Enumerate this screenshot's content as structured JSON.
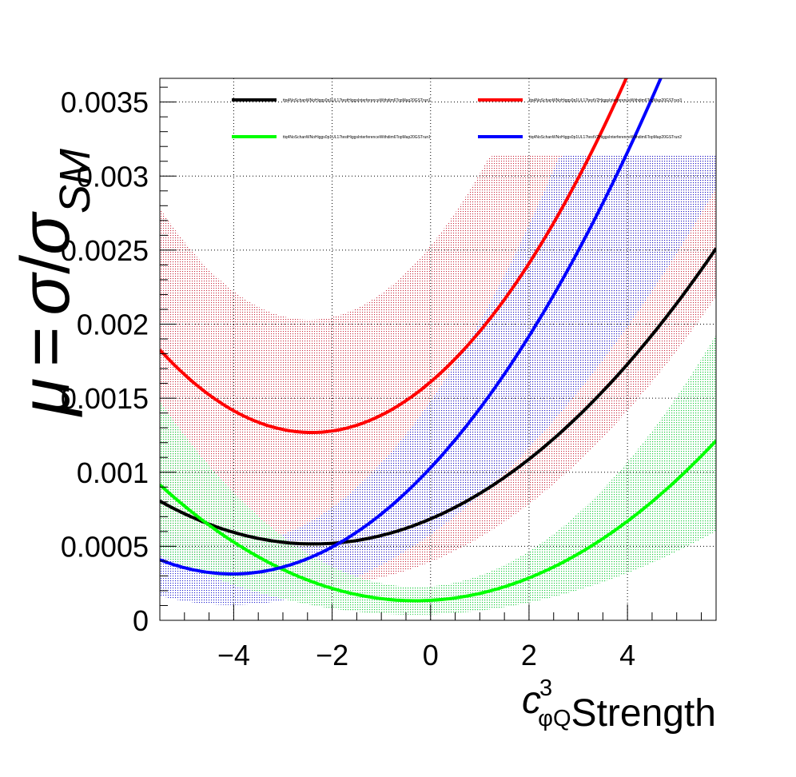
{
  "chart_data": {
    "type": "line",
    "title": "",
    "xlabel": {
      "symbol": "c",
      "superscript": "3",
      "subscript": "φQ",
      "text": "Strength"
    },
    "ylabel": {
      "mu": "μ",
      "eq": "=",
      "sigma": "σ",
      "slash": "/",
      "sub": "SM"
    },
    "xlim": [
      -5.5,
      5.8
    ],
    "ylim": [
      0,
      0.00366
    ],
    "x_ticks": [
      -4,
      -2,
      0,
      2,
      4
    ],
    "x_tick_labels": [
      "−4",
      "−2",
      "0",
      "2",
      "4"
    ],
    "y_ticks": [
      0,
      0.0005,
      0.001,
      0.0015,
      0.002,
      0.0025,
      0.003,
      0.0035
    ],
    "y_tick_labels": [
      "0",
      "0.0005",
      "0.001",
      "0.0015",
      "0.002",
      "0.0025",
      "0.003",
      "0.0035"
    ],
    "grid": true,
    "legend_position": "top",
    "series": [
      {
        "name": "ttq4NoSchanWNoHiggs0p1UL17testHiggsInterferenceWithdim6TopMap20GSTrun1",
        "color": "#000000",
        "quad": [
          2.98e-05,
          0.000142,
          0.000685
        ],
        "band": {
          "color": "#c8283c",
          "hatch": "dots",
          "quad_low": [
            3e-05,
            0.000135,
            0.000395
          ],
          "quad_high": [
            8.2e-05,
            0.000405,
            0.00253
          ]
        }
      },
      {
        "name": "ttq4NoSchanWNoHiggs0p1UL17testV2HiggsInterferenceWithdim6TopMap20GSTrun3",
        "color": "#ff0000",
        "quad": [
          5.86e-05,
          0.000283,
          0.00161
        ]
      },
      {
        "name": "ttq4NoSchanWNoHiggs0p1UL17testHiggsInterferenceWithdim6TopMap20GSTrun1",
        "color": "#00ff00",
        "quad": [
          2.9e-05,
          1.76e-05,
          0.000135
        ],
        "band": {
          "color": "#22cc44",
          "hatch": "dots",
          "quad_low": [
            1.5e-05,
            1e-05,
            4e-05
          ],
          "quad_high": [
            4.6e-05,
            2.6e-05,
            0.00023
          ]
        }
      },
      {
        "name": "ttq4NoSchanWNoHiggs0p1UL17testV2HiggsInterferenceWithdim6TopMap20GSTrun2",
        "color": "#0000ff",
        "quad": [
          4.42e-05,
          0.000356,
          0.00103
        ],
        "band": {
          "color": "#1a1ad0",
          "hatch": "dots",
          "quad_low": [
            2.9e-05,
            0.000235,
            0.00058
          ],
          "quad_high": [
            5.9e-05,
            0.000477,
            0.00148
          ]
        }
      }
    ]
  }
}
